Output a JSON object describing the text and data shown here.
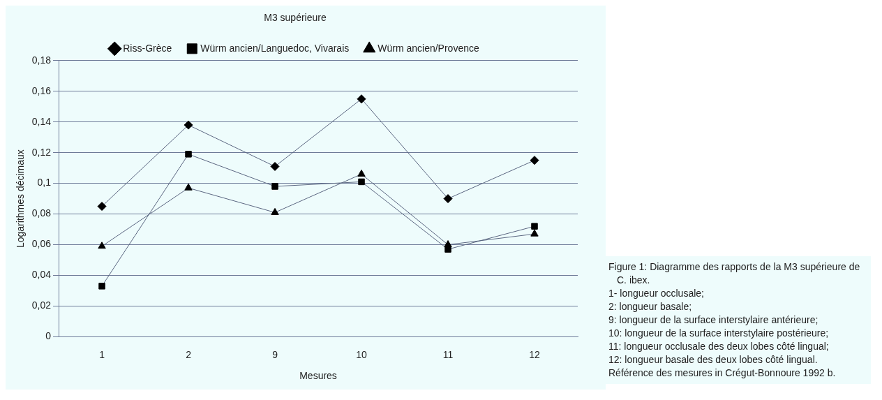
{
  "chart_data": {
    "type": "line",
    "title": "M3 supérieure",
    "xlabel": "Mesures",
    "ylabel": "Logarithmes décimaux",
    "categories": [
      "1",
      "2",
      "9",
      "10",
      "11",
      "12"
    ],
    "series": [
      {
        "name": "Riss-Grèce",
        "color": "#000000",
        "marker": "diamond",
        "values": [
          0.085,
          0.138,
          0.111,
          0.155,
          0.09,
          0.115
        ]
      },
      {
        "name": "Würm ancien/Languedoc, Vivarais",
        "color": "#000000",
        "marker": "square",
        "values": [
          0.033,
          0.119,
          0.098,
          0.101,
          0.057,
          0.072
        ]
      },
      {
        "name": "Würm ancien/Provence",
        "color": "#000000",
        "marker": "triangle",
        "values": [
          0.059,
          0.097,
          0.081,
          0.106,
          0.06,
          0.067
        ]
      }
    ],
    "ylim": [
      0,
      0.18
    ],
    "yticks": [
      {
        "value": 0,
        "label": "0"
      },
      {
        "value": 0.02,
        "label": "0,02"
      },
      {
        "value": 0.04,
        "label": "0,04"
      },
      {
        "value": 0.06,
        "label": "0,06"
      },
      {
        "value": 0.08,
        "label": "0,08"
      },
      {
        "value": 0.1,
        "label": "0,1"
      },
      {
        "value": 0.12,
        "label": "0,12"
      },
      {
        "value": 0.14,
        "label": "0,14"
      },
      {
        "value": 0.16,
        "label": "0,16"
      },
      {
        "value": 0.18,
        "label": "0,18"
      }
    ],
    "grid": "y",
    "legend": "top",
    "line_style": "solid",
    "annotations": [
      "Figure 1: Diagramme des rapports de la M3 supérieure de C. ibex.",
      "1- longueur occlusale;",
      "2: longueur basale;",
      "9: longueur de la surface interstylaire antérieure;",
      "10: longueur de la surface interstylaire postérieure;",
      "11: longueur occlusale des deux lobes côté lingual;",
      "12: longueur basale des deux lobes côté lingual.",
      "Référence des mesures in Crégut-Bonnoure 1992 b."
    ]
  }
}
